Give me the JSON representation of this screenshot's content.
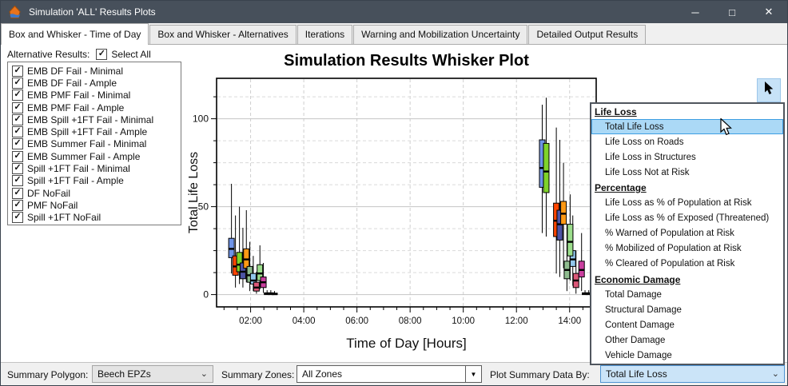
{
  "window": {
    "title": "Simulation 'ALL' Results Plots"
  },
  "icons": {
    "app_icon": "lifesim-flame-house",
    "minimize": "─",
    "maximize": "□",
    "close": "✕",
    "checkbox_check": "✓",
    "chevron_down": "⌄",
    "dropdown_arrow": "▼",
    "pointer_tool": "cursor-arrow",
    "mouse_cursor": "cursor-arrow"
  },
  "colors": {
    "titlebar_bg": "#47505B",
    "selection_fill": "#ABD9F6",
    "selection_border": "#3E9EE3",
    "focused_combo_bg": "#CBE4F8",
    "tab_strip_bg": "#F0F0F0"
  },
  "tabs": [
    {
      "label": "Box and Whisker - Time of Day",
      "active": true
    },
    {
      "label": "Box and Whisker - Alternatives",
      "active": false
    },
    {
      "label": "Iterations",
      "active": false
    },
    {
      "label": "Warning and Mobilization Uncertainty",
      "active": false
    },
    {
      "label": "Detailed Output Results",
      "active": false
    }
  ],
  "alternatives_panel": {
    "label": "Alternative Results:",
    "select_all_label": "Select All",
    "select_all_checked": true,
    "items": [
      {
        "label": "EMB DF Fail - Minimal",
        "checked": true
      },
      {
        "label": "EMB DF Fail - Ample",
        "checked": true
      },
      {
        "label": "EMB PMF Fail - Minimal",
        "checked": true
      },
      {
        "label": "EMB PMF Fail - Ample",
        "checked": true
      },
      {
        "label": "EMB Spill +1FT Fail - Minimal",
        "checked": true
      },
      {
        "label": "EMB Spill +1FT Fail - Ample",
        "checked": true
      },
      {
        "label": "EMB Summer Fail - Minimal",
        "checked": true
      },
      {
        "label": "EMB Summer Fail - Ample",
        "checked": true
      },
      {
        "label": "Spill +1FT Fail - Minimal",
        "checked": true
      },
      {
        "label": "Spill +1FT Fail - Ample",
        "checked": true
      },
      {
        "label": "DF NoFail",
        "checked": true
      },
      {
        "label": "PMF NoFail",
        "checked": true
      },
      {
        "label": "Spill +1FT NoFail",
        "checked": true
      }
    ]
  },
  "dropdown": {
    "items": [
      {
        "label": "Life Loss",
        "type": "header"
      },
      {
        "label": "Total Life Loss",
        "type": "item",
        "selected": true
      },
      {
        "label": "Life Loss on Roads",
        "type": "item"
      },
      {
        "label": "Life Loss in Structures",
        "type": "item"
      },
      {
        "label": "Life Loss Not at Risk",
        "type": "item"
      },
      {
        "label": "Percentage",
        "type": "header"
      },
      {
        "label": "Life Loss as % of Population at Risk",
        "type": "item"
      },
      {
        "label": "Life Loss as % of Exposed (Threatened)",
        "type": "item"
      },
      {
        "label": "% Warned of Population at Risk",
        "type": "item"
      },
      {
        "label": "% Mobilized of Population at Risk",
        "type": "item"
      },
      {
        "label": "% Cleared of Population at Risk",
        "type": "item"
      },
      {
        "label": "Economic Damage",
        "type": "header"
      },
      {
        "label": "Total Damage",
        "type": "item"
      },
      {
        "label": "Structural Damage",
        "type": "item"
      },
      {
        "label": "Content Damage",
        "type": "item"
      },
      {
        "label": "Other Damage",
        "type": "item"
      },
      {
        "label": "Vehicle Damage",
        "type": "item"
      }
    ]
  },
  "bottom_bar": {
    "summary_polygon_label": "Summary Polygon:",
    "summary_polygon_value": "Beech EPZs",
    "summary_zones_label": "Summary Zones:",
    "summary_zones_value": "All Zones",
    "plot_by_label": "Plot Summary Data By:",
    "plot_by_value": "Total Life Loss"
  },
  "chart_data": {
    "type": "box",
    "title": "Simulation Results Whisker Plot",
    "xlabel": "Time of Day [Hours]",
    "ylabel": "Total Life Loss",
    "xlim_hours": [
      0.72,
      15.0
    ],
    "ylim": [
      -7,
      123
    ],
    "xticks": [
      {
        "hour": 2,
        "label": "02:00"
      },
      {
        "hour": 4,
        "label": "04:00"
      },
      {
        "hour": 6,
        "label": "06:00"
      },
      {
        "hour": 8,
        "label": "08:00"
      },
      {
        "hour": 10,
        "label": "10:00"
      },
      {
        "hour": 12,
        "label": "12:00"
      },
      {
        "hour": 14,
        "label": "14:00"
      }
    ],
    "minor_xtick_interval_hours": 0.5,
    "yticks": [
      0,
      50,
      100
    ],
    "minor_ytick_interval": 12.5,
    "grid": {
      "vertical_major": "dashed",
      "horizontal_major": "solid",
      "horizontal_minor": "dashed"
    },
    "series": [
      {
        "name": "EMB DF Fail - Minimal",
        "color": "#6E93E6",
        "boxes": [
          {
            "t": 1.28,
            "lo": 12,
            "q1": 21,
            "med": 26,
            "q3": 32,
            "hi": 63
          },
          {
            "t": 12.97,
            "lo": 35,
            "q1": 61,
            "med": 72,
            "q3": 88,
            "hi": 108
          }
        ]
      },
      {
        "name": "EMB DF Fail - Ample",
        "color": "#FF4500",
        "boxes": [
          {
            "t": 1.43,
            "lo": 4,
            "q1": 11,
            "med": 16,
            "q3": 22,
            "hi": 45
          },
          {
            "t": 13.5,
            "lo": 12,
            "q1": 33,
            "med": 42,
            "q3": 52,
            "hi": 95
          }
        ]
      },
      {
        "name": "EMB PMF Fail - Minimal",
        "color": "#7FD32A",
        "boxes": [
          {
            "t": 1.58,
            "lo": 6,
            "q1": 13,
            "med": 17,
            "q3": 24,
            "hi": 50
          },
          {
            "t": 13.12,
            "lo": 33,
            "q1": 58,
            "med": 70,
            "q3": 86,
            "hi": 112
          }
        ]
      },
      {
        "name": "EMB PMF Fail - Ample",
        "color": "#4D53A5",
        "boxes": [
          {
            "t": 1.71,
            "lo": 4,
            "q1": 9,
            "med": 13,
            "q3": 18,
            "hi": 38
          },
          {
            "t": 13.63,
            "lo": 10,
            "q1": 31,
            "med": 40,
            "q3": 48,
            "hi": 88
          }
        ]
      },
      {
        "name": "EMB Spill +1FT Fail - Minimal",
        "color": "#FF9914",
        "boxes": [
          {
            "t": 1.84,
            "lo": 7,
            "q1": 15,
            "med": 20,
            "q3": 26,
            "hi": 48
          },
          {
            "t": 13.77,
            "lo": 15,
            "q1": 40,
            "med": 46,
            "q3": 53,
            "hi": 75
          }
        ]
      },
      {
        "name": "EMB Spill +1FT Fail - Ample",
        "color": "#8FBC8F",
        "boxes": [
          {
            "t": 1.97,
            "lo": 2,
            "q1": 7,
            "med": 11,
            "q3": 16,
            "hi": 30
          },
          {
            "t": 13.9,
            "lo": 2,
            "q1": 9,
            "med": 14,
            "q3": 19,
            "hi": 40
          }
        ]
      },
      {
        "name": "EMB Summer Fail - Minimal",
        "color": "#92C7EC",
        "boxes": [
          {
            "t": 2.1,
            "lo": 2,
            "q1": 6,
            "med": 8,
            "q3": 12,
            "hi": 22
          },
          {
            "t": 14.12,
            "lo": 5,
            "q1": 16,
            "med": 20,
            "q3": 25,
            "hi": 45
          }
        ]
      },
      {
        "name": "EMB Summer Fail - Ample",
        "color": "#DC5878",
        "boxes": [
          {
            "t": 2.22,
            "lo": 0.5,
            "q1": 2,
            "med": 4,
            "q3": 7,
            "hi": 13
          },
          {
            "t": 14.24,
            "lo": 0.5,
            "q1": 4,
            "med": 8,
            "q3": 12,
            "hi": 25
          }
        ]
      },
      {
        "name": "Spill +1FT Fail - Minimal",
        "color": "#9CDE8C",
        "boxes": [
          {
            "t": 2.35,
            "lo": 3,
            "q1": 8,
            "med": 12,
            "q3": 17,
            "hi": 28
          },
          {
            "t": 14.02,
            "lo": 8,
            "q1": 22,
            "med": 30,
            "q3": 40,
            "hi": 57
          }
        ]
      },
      {
        "name": "Spill +1FT Fail - Ample",
        "color": "#C93F9E",
        "boxes": [
          {
            "t": 2.48,
            "lo": 1,
            "q1": 4,
            "med": 7,
            "q3": 10,
            "hi": 18
          },
          {
            "t": 14.45,
            "lo": 2,
            "q1": 10,
            "med": 14,
            "q3": 19,
            "hi": 35
          }
        ]
      },
      {
        "name": "DF NoFail",
        "color": "#3A3A3A",
        "boxes": [
          {
            "t": 2.62,
            "lo": 0,
            "q1": 0,
            "med": 0.4,
            "q3": 1,
            "hi": 2.5
          },
          {
            "t": 14.58,
            "lo": 0,
            "q1": 0,
            "med": 0.4,
            "q3": 1,
            "hi": 2.5
          }
        ]
      },
      {
        "name": "PMF NoFail",
        "color": "#3A3A3A",
        "boxes": [
          {
            "t": 2.76,
            "lo": 0,
            "q1": 0,
            "med": 0.4,
            "q3": 1,
            "hi": 2.5
          },
          {
            "t": 14.72,
            "lo": 0,
            "q1": 0,
            "med": 0.4,
            "q3": 1,
            "hi": 2.5
          }
        ]
      },
      {
        "name": "Spill +1FT NoFail",
        "color": "#3A3A3A",
        "boxes": [
          {
            "t": 2.9,
            "lo": 0,
            "q1": 0,
            "med": 0.3,
            "q3": 0.8,
            "hi": 2
          },
          {
            "t": 14.85,
            "lo": 0,
            "q1": 0,
            "med": 0.3,
            "q3": 0.8,
            "hi": 2
          }
        ]
      }
    ]
  }
}
